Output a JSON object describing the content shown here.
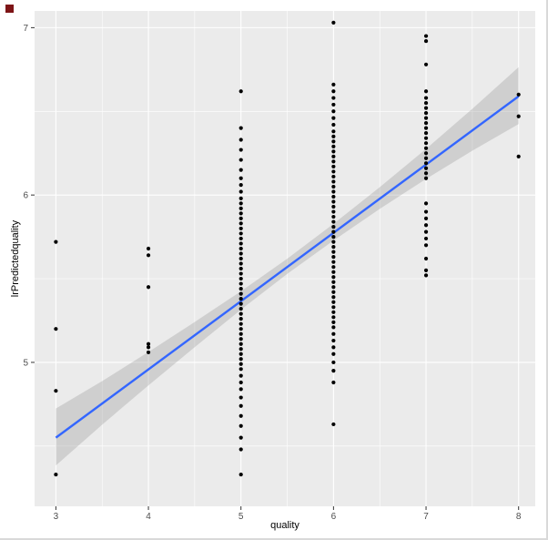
{
  "window": {
    "artifact_color": "#7d1416"
  },
  "chart_data": {
    "type": "scatter",
    "title": "",
    "xlabel": "quality",
    "ylabel": "lrPredictedquality",
    "xlim": [
      2.77,
      8.18
    ],
    "ylim": [
      4.14,
      7.1
    ],
    "x_ticks": [
      3,
      4,
      5,
      6,
      7,
      8
    ],
    "y_ticks": [
      5,
      6,
      7
    ],
    "x_minor_ticks": [
      3.5,
      4.5,
      5.5,
      6.5,
      7.5
    ],
    "y_minor_ticks": [
      4.5,
      5.5,
      6.5
    ],
    "grid": "on",
    "legend": "none",
    "panel_bg": "#EBEBEB",
    "grid_color": "#FFFFFF",
    "point_color": "#000000",
    "tick_label_color": "#4D4D4D",
    "smooth_line_color": "#3366FF",
    "ribbon_color": "#999999",
    "clusters": [
      {
        "x": 3,
        "y": [
          5.72,
          5.2,
          4.83,
          4.33
        ]
      },
      {
        "x": 4,
        "y": [
          5.68,
          5.64,
          5.45,
          5.11,
          5.09,
          5.06
        ]
      },
      {
        "x": 5,
        "y": [
          6.62,
          6.4,
          6.33,
          6.27,
          6.21,
          6.15,
          6.1,
          6.06,
          6.02,
          5.98,
          5.95,
          5.92,
          5.89,
          5.86,
          5.83,
          5.8,
          5.77,
          5.74,
          5.71,
          5.68,
          5.65,
          5.62,
          5.59,
          5.56,
          5.53,
          5.5,
          5.47,
          5.44,
          5.41,
          5.38,
          5.35,
          5.32,
          5.29,
          5.26,
          5.23,
          5.2,
          5.17,
          5.14,
          5.11,
          5.08,
          5.05,
          5.02,
          4.99,
          4.96,
          4.92,
          4.88,
          4.84,
          4.79,
          4.74,
          4.68,
          4.62,
          4.55,
          4.48,
          4.33
        ]
      },
      {
        "x": 6,
        "y": [
          7.03,
          6.66,
          6.62,
          6.58,
          6.54,
          6.5,
          6.46,
          6.42,
          6.38,
          6.35,
          6.32,
          6.29,
          6.26,
          6.23,
          6.2,
          6.17,
          6.14,
          6.11,
          6.08,
          6.05,
          6.02,
          5.99,
          5.96,
          5.93,
          5.9,
          5.87,
          5.84,
          5.81,
          5.78,
          5.75,
          5.72,
          5.69,
          5.66,
          5.63,
          5.6,
          5.57,
          5.54,
          5.51,
          5.48,
          5.45,
          5.42,
          5.39,
          5.36,
          5.33,
          5.3,
          5.27,
          5.24,
          5.21,
          5.17,
          5.13,
          5.09,
          5.05,
          5.0,
          4.95,
          4.88,
          4.63
        ]
      },
      {
        "x": 7,
        "y": [
          6.95,
          6.92,
          6.78,
          6.62,
          6.58,
          6.55,
          6.52,
          6.49,
          6.46,
          6.43,
          6.4,
          6.37,
          6.34,
          6.31,
          6.28,
          6.25,
          6.22,
          6.19,
          6.16,
          6.13,
          6.1,
          5.95,
          5.9,
          5.86,
          5.82,
          5.78,
          5.74,
          5.7,
          5.62,
          5.55,
          5.52
        ]
      },
      {
        "x": 8,
        "y": [
          6.6,
          6.47,
          6.23
        ]
      }
    ],
    "smooth": {
      "x": [
        3,
        8
      ],
      "y": [
        4.55,
        6.59
      ]
    },
    "ribbon": {
      "x": [
        3,
        3.5,
        4,
        4.5,
        5,
        5.5,
        6,
        6.5,
        7,
        7.5,
        8
      ],
      "upper": [
        4.724,
        4.888,
        5.062,
        5.241,
        5.425,
        5.619,
        5.828,
        6.047,
        6.276,
        6.515,
        6.764
      ],
      "lower": [
        4.384,
        4.628,
        4.862,
        5.091,
        5.315,
        5.529,
        5.728,
        5.917,
        6.096,
        6.265,
        6.424
      ]
    }
  }
}
